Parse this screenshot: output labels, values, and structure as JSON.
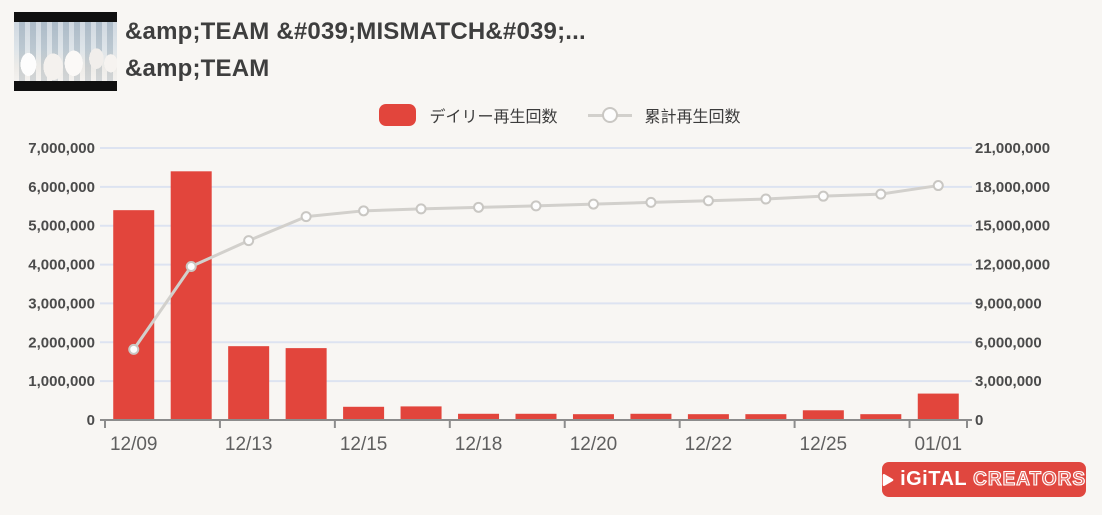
{
  "header": {
    "title_line1": "&amp;TEAM &#039;MISMATCH&#039;...",
    "title_line2": "&amp;TEAM"
  },
  "legend": {
    "daily_label": "デイリー再生回数",
    "cumulative_label": "累計再生回数"
  },
  "logo": {
    "text_solid": "iGiTAL",
    "text_outline": "CREATORS"
  },
  "colors": {
    "background": "#f8f6f3",
    "bar": "#e2453c",
    "line": "#d2d0cc",
    "marker_fill": "#fdfdfd",
    "marker_stroke": "#c9c7c3",
    "grid": "#dde3f1",
    "axis": "#8c8c8c",
    "y_label_text": "#4b4b4b",
    "x_label_text": "#5f5f5f",
    "title_text": "#3e3e3e",
    "logo_bg": "#e0473f"
  },
  "chart_data": {
    "type": "combo",
    "categories": [
      "12/09",
      "",
      "12/13",
      "",
      "12/15",
      "",
      "12/18",
      "",
      "12/20",
      "",
      "12/22",
      "",
      "12/25",
      "",
      "01/01"
    ],
    "x_tick_labels_shown": [
      "12/09",
      "12/13",
      "12/15",
      "12/18",
      "12/20",
      "12/22",
      "12/25",
      "01/01"
    ],
    "series": [
      {
        "name": "デイリー再生回数",
        "type": "bar",
        "y_axis": "left",
        "values": [
          5400000,
          6400000,
          1900000,
          1850000,
          340000,
          350000,
          160000,
          160000,
          150000,
          160000,
          150000,
          150000,
          250000,
          150000,
          680000
        ]
      },
      {
        "name": "累計再生回数",
        "type": "line",
        "y_axis": "right",
        "values": [
          5450000,
          11850000,
          13850000,
          15700000,
          16150000,
          16300000,
          16420000,
          16530000,
          16670000,
          16800000,
          16930000,
          17060000,
          17280000,
          17440000,
          18100000
        ]
      }
    ],
    "left_axis": {
      "range": [
        0,
        7000000
      ],
      "tick_step": 1000000,
      "tick_labels": [
        "0",
        "1,000,000",
        "2,000,000",
        "3,000,000",
        "4,000,000",
        "5,000,000",
        "6,000,000",
        "7,000,000"
      ]
    },
    "right_axis": {
      "range": [
        0,
        21000000
      ],
      "tick_step": 3000000,
      "tick_labels": [
        "0",
        "3,000,000",
        "6,000,000",
        "9,000,000",
        "12,000,000",
        "15,000,000",
        "18,000,000",
        "21,000,000"
      ]
    },
    "grid": true,
    "legend_position": "top-center"
  }
}
